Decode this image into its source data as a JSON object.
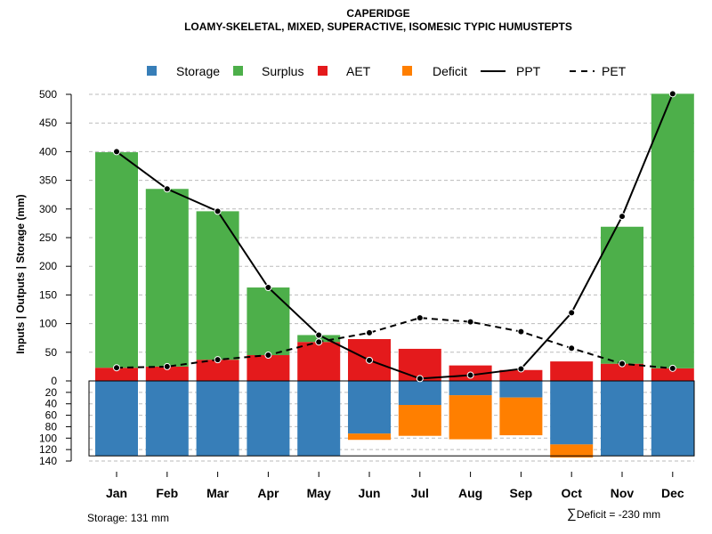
{
  "title": "CAPERIDGE",
  "subtitle": "LOAMY-SKELETAL, MIXED, SUPERACTIVE, ISOMESIC TYPIC HUMUSTEPTS",
  "footer": {
    "storage_label": "Storage: 131 mm",
    "deficit_symbol": "∑",
    "deficit_label": "Deficit = -230 mm"
  },
  "colors": {
    "storage": "#377EB8",
    "surplus": "#4DAF4A",
    "aet": "#E41A1C",
    "deficit": "#FF7F00",
    "line": "#000000",
    "grid": "#bbbbbb"
  },
  "legend": [
    {
      "key": "storage",
      "label": "Storage",
      "kind": "box"
    },
    {
      "key": "surplus",
      "label": "Surplus",
      "kind": "box"
    },
    {
      "key": "aet",
      "label": "AET",
      "kind": "box"
    },
    {
      "key": "deficit",
      "label": "Deficit",
      "kind": "box"
    },
    {
      "key": "ppt",
      "label": "PPT",
      "kind": "solid"
    },
    {
      "key": "pet",
      "label": "PET",
      "kind": "dashed"
    }
  ],
  "chart_data": {
    "type": "bar",
    "title": "CAPERIDGE",
    "ylabel": "Inputs | Outputs | Storage    (mm)",
    "ylim_top": [
      0,
      500
    ],
    "ylim_bottom": [
      0,
      140
    ],
    "y_ticks_top": [
      0,
      50,
      100,
      150,
      200,
      250,
      300,
      350,
      400,
      450,
      500
    ],
    "y_ticks_bottom": [
      20,
      40,
      60,
      80,
      100,
      120,
      140
    ],
    "categories": [
      "Jan",
      "Feb",
      "Mar",
      "Apr",
      "May",
      "Jun",
      "Jul",
      "Aug",
      "Sep",
      "Oct",
      "Nov",
      "Dec"
    ],
    "series": [
      {
        "name": "AET",
        "values": [
          23,
          25,
          37,
          45,
          68,
          73,
          56,
          27,
          19,
          34,
          30,
          22
        ]
      },
      {
        "name": "Surplus",
        "values": [
          376,
          310,
          259,
          118,
          12,
          0,
          0,
          0,
          0,
          0,
          239,
          479
        ]
      },
      {
        "name": "PPT",
        "values": [
          400,
          335,
          296,
          163,
          80,
          36,
          4,
          10,
          21,
          119,
          287,
          501
        ]
      },
      {
        "name": "PET",
        "values": [
          23,
          25,
          37,
          45,
          68,
          84,
          110,
          103,
          86,
          57,
          30,
          22
        ]
      },
      {
        "name": "Storage",
        "values": [
          131,
          131,
          131,
          131,
          131,
          92,
          42,
          25,
          29,
          111,
          131,
          131
        ]
      },
      {
        "name": "Deficit",
        "values": [
          0,
          0,
          0,
          0,
          0,
          11,
          54,
          77,
          66,
          23,
          0,
          0
        ]
      }
    ]
  }
}
